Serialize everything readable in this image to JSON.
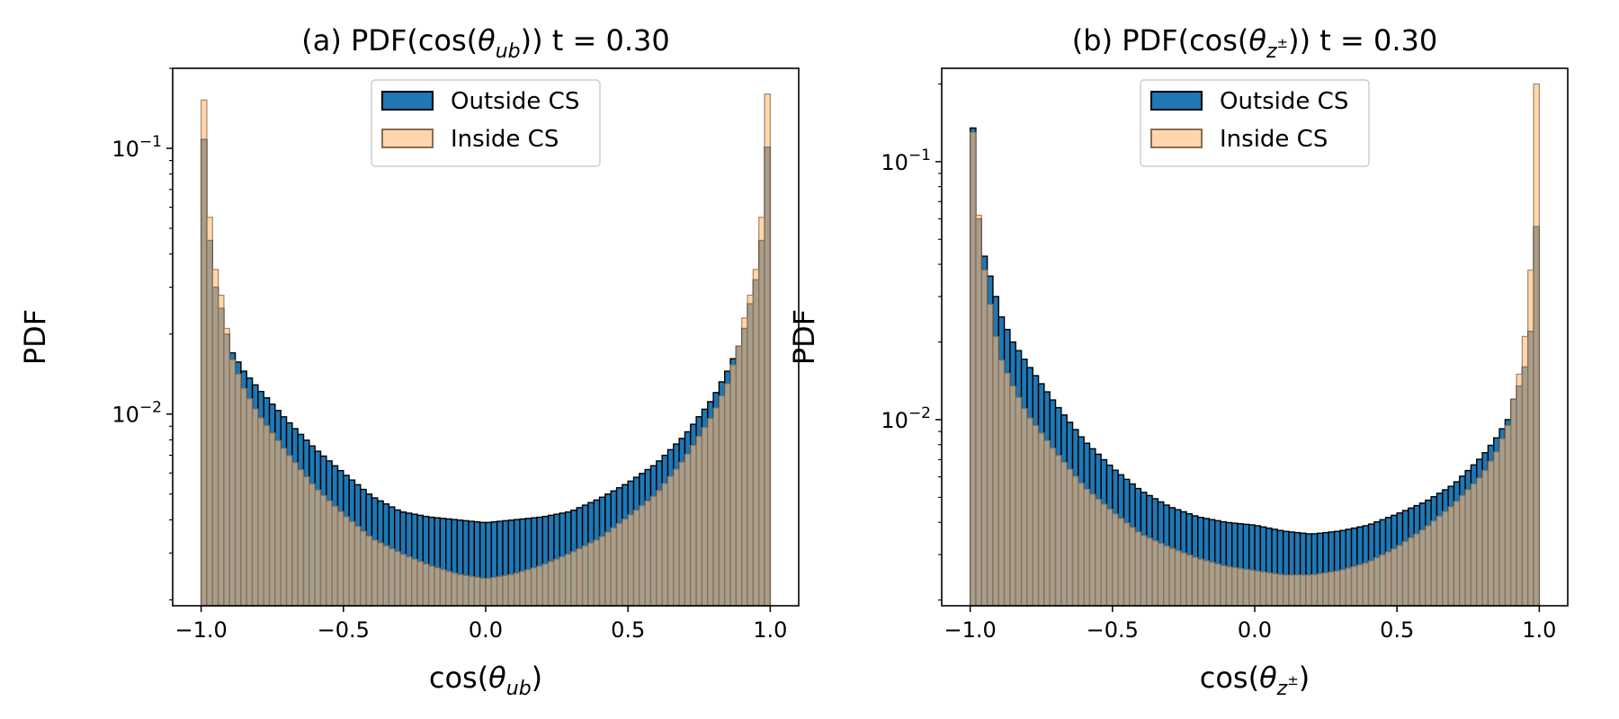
{
  "chart_data": [
    {
      "type": "histogram",
      "title_prefix": "(a) PDF(cos(",
      "title_var": "θ",
      "title_sub": "ub",
      "title_suffix": ")) t = 0.30",
      "xlabel_prefix": "cos(",
      "xlabel_var": "θ",
      "xlabel_sub": "ub",
      "xlabel_suffix": ")",
      "ylabel": "PDF",
      "yscale": "log",
      "xlim": [
        -1.1,
        1.1
      ],
      "ylim": [
        0.0019,
        0.2
      ],
      "xticks": [
        -1.0,
        -0.5,
        0.0,
        0.5,
        1.0
      ],
      "xtick_labels": [
        "−1.0",
        "−0.5",
        "0.0",
        "0.5",
        "1.0"
      ],
      "yticks": [
        0.01,
        0.1
      ],
      "ytick_labels": [
        [
          "10",
          "−2"
        ],
        [
          "10",
          "−1"
        ]
      ],
      "bins": 100,
      "bin_range": [
        -1.0,
        1.0
      ],
      "legend": {
        "position": "upper-center",
        "entries": [
          "Outside CS",
          "Inside CS"
        ]
      },
      "series": [
        {
          "name": "Outside CS",
          "color": "#1f77b4",
          "edge": "#000000",
          "anchors": [
            [
              -0.99,
              0.108
            ],
            [
              -0.97,
              0.045
            ],
            [
              -0.95,
              0.03
            ],
            [
              -0.93,
              0.025
            ],
            [
              -0.91,
              0.02
            ],
            [
              -0.89,
              0.017
            ],
            [
              -0.85,
              0.0145
            ],
            [
              -0.8,
              0.0125
            ],
            [
              -0.7,
              0.0095
            ],
            [
              -0.6,
              0.0074
            ],
            [
              -0.5,
              0.006
            ],
            [
              -0.4,
              0.0049
            ],
            [
              -0.3,
              0.0043
            ],
            [
              -0.2,
              0.0041
            ],
            [
              -0.1,
              0.004
            ],
            [
              0.0,
              0.0039
            ],
            [
              0.1,
              0.004
            ],
            [
              0.2,
              0.0041
            ],
            [
              0.3,
              0.0043
            ],
            [
              0.4,
              0.0048
            ],
            [
              0.5,
              0.0055
            ],
            [
              0.6,
              0.0065
            ],
            [
              0.7,
              0.0083
            ],
            [
              0.8,
              0.0115
            ],
            [
              0.85,
              0.0145
            ],
            [
              0.89,
              0.018
            ],
            [
              0.91,
              0.021
            ],
            [
              0.93,
              0.026
            ],
            [
              0.95,
              0.032
            ],
            [
              0.97,
              0.045
            ],
            [
              0.99,
              0.101
            ]
          ]
        },
        {
          "name": "Inside CS",
          "color": "#ffbb78",
          "edge": "#8c6d4f",
          "anchors": [
            [
              -0.99,
              0.152
            ],
            [
              -0.97,
              0.055
            ],
            [
              -0.95,
              0.035
            ],
            [
              -0.93,
              0.028
            ],
            [
              -0.91,
              0.021
            ],
            [
              -0.89,
              0.016
            ],
            [
              -0.85,
              0.0125
            ],
            [
              -0.8,
              0.01
            ],
            [
              -0.7,
              0.0072
            ],
            [
              -0.6,
              0.0053
            ],
            [
              -0.5,
              0.0042
            ],
            [
              -0.4,
              0.0034
            ],
            [
              -0.3,
              0.003
            ],
            [
              -0.2,
              0.0027
            ],
            [
              -0.1,
              0.0025
            ],
            [
              0.0,
              0.0024
            ],
            [
              0.1,
              0.0025
            ],
            [
              0.2,
              0.0027
            ],
            [
              0.3,
              0.003
            ],
            [
              0.4,
              0.0034
            ],
            [
              0.5,
              0.0041
            ],
            [
              0.6,
              0.005
            ],
            [
              0.7,
              0.0068
            ],
            [
              0.8,
              0.01
            ],
            [
              0.85,
              0.013
            ],
            [
              0.89,
              0.018
            ],
            [
              0.91,
              0.023
            ],
            [
              0.93,
              0.028
            ],
            [
              0.95,
              0.035
            ],
            [
              0.97,
              0.055
            ],
            [
              0.99,
              0.16
            ]
          ]
        }
      ]
    },
    {
      "type": "histogram",
      "title_prefix": "(b) PDF(cos(",
      "title_var": "θ",
      "title_sub": "z",
      "title_sup": "±",
      "title_suffix": ")) t = 0.30",
      "xlabel_prefix": "cos(",
      "xlabel_var": "θ",
      "xlabel_sub": "z",
      "xlabel_sup": "±",
      "xlabel_suffix": ")",
      "ylabel": "PDF",
      "yscale": "log",
      "xlim": [
        -1.1,
        1.1
      ],
      "ylim": [
        0.0019,
        0.23
      ],
      "xticks": [
        -1.0,
        -0.5,
        0.0,
        0.5,
        1.0
      ],
      "xtick_labels": [
        "−1.0",
        "−0.5",
        "0.0",
        "0.5",
        "1.0"
      ],
      "yticks": [
        0.01,
        0.1
      ],
      "ytick_labels": [
        [
          "10",
          "−2"
        ],
        [
          "10",
          "−1"
        ]
      ],
      "bins": 100,
      "bin_range": [
        -1.0,
        1.0
      ],
      "legend": {
        "position": "upper-center",
        "entries": [
          "Outside CS",
          "Inside CS"
        ]
      },
      "series": [
        {
          "name": "Outside CS",
          "color": "#1f77b4",
          "edge": "#000000",
          "anchors": [
            [
              -0.99,
              0.135
            ],
            [
              -0.97,
              0.06
            ],
            [
              -0.95,
              0.043
            ],
            [
              -0.93,
              0.036
            ],
            [
              -0.91,
              0.03
            ],
            [
              -0.89,
              0.025
            ],
            [
              -0.85,
              0.02
            ],
            [
              -0.8,
              0.0165
            ],
            [
              -0.7,
              0.0115
            ],
            [
              -0.6,
              0.0083
            ],
            [
              -0.5,
              0.0065
            ],
            [
              -0.4,
              0.0053
            ],
            [
              -0.3,
              0.0046
            ],
            [
              -0.2,
              0.0042
            ],
            [
              -0.1,
              0.004
            ],
            [
              0.0,
              0.0039
            ],
            [
              0.1,
              0.0037
            ],
            [
              0.2,
              0.0036
            ],
            [
              0.3,
              0.0037
            ],
            [
              0.4,
              0.0039
            ],
            [
              0.5,
              0.0043
            ],
            [
              0.6,
              0.0048
            ],
            [
              0.7,
              0.0056
            ],
            [
              0.8,
              0.0072
            ],
            [
              0.85,
              0.0085
            ],
            [
              0.89,
              0.01
            ],
            [
              0.91,
              0.012
            ],
            [
              0.93,
              0.0135
            ],
            [
              0.95,
              0.016
            ],
            [
              0.97,
              0.022
            ],
            [
              0.99,
              0.056
            ]
          ]
        },
        {
          "name": "Inside CS",
          "color": "#ffbb78",
          "edge": "#8c6d4f",
          "anchors": [
            [
              -0.99,
              0.13
            ],
            [
              -0.97,
              0.062
            ],
            [
              -0.95,
              0.038
            ],
            [
              -0.93,
              0.028
            ],
            [
              -0.91,
              0.021
            ],
            [
              -0.89,
              0.017
            ],
            [
              -0.85,
              0.0135
            ],
            [
              -0.8,
              0.0105
            ],
            [
              -0.7,
              0.0075
            ],
            [
              -0.6,
              0.0055
            ],
            [
              -0.5,
              0.0044
            ],
            [
              -0.4,
              0.0036
            ],
            [
              -0.3,
              0.0032
            ],
            [
              -0.2,
              0.0029
            ],
            [
              -0.1,
              0.0027
            ],
            [
              0.0,
              0.0026
            ],
            [
              0.1,
              0.0025
            ],
            [
              0.2,
              0.0025
            ],
            [
              0.3,
              0.0026
            ],
            [
              0.4,
              0.0028
            ],
            [
              0.5,
              0.0032
            ],
            [
              0.6,
              0.0038
            ],
            [
              0.7,
              0.0047
            ],
            [
              0.8,
              0.0061
            ],
            [
              0.85,
              0.0075
            ],
            [
              0.89,
              0.0095
            ],
            [
              0.91,
              0.012
            ],
            [
              0.93,
              0.015
            ],
            [
              0.95,
              0.021
            ],
            [
              0.97,
              0.038
            ],
            [
              0.99,
              0.2
            ]
          ]
        }
      ]
    }
  ]
}
